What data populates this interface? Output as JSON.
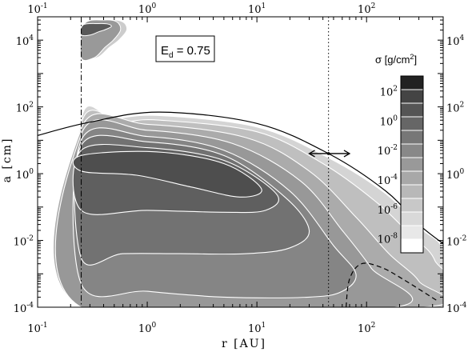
{
  "chart_data": {
    "type": "heatmap",
    "xlabel": "r [AU]",
    "ylabel": "a [cm]",
    "x_scale": "log",
    "y_scale": "log",
    "xlim": [
      0.1,
      500
    ],
    "ylim": [
      0.0001,
      50000
    ],
    "x_ticks": [
      {
        "value": 0.1,
        "label": "10",
        "exp": "-1"
      },
      {
        "value": 1,
        "label": "10",
        "exp": "0"
      },
      {
        "value": 10,
        "label": "10",
        "exp": "1"
      },
      {
        "value": 100,
        "label": "10",
        "exp": "2"
      }
    ],
    "y_ticks": [
      {
        "value": 0.0001,
        "label": "10",
        "exp": "-4"
      },
      {
        "value": 0.01,
        "label": "10",
        "exp": "-2"
      },
      {
        "value": 1,
        "label": "10",
        "exp": "0"
      },
      {
        "value": 100,
        "label": "10",
        "exp": "2"
      },
      {
        "value": 10000,
        "label": "10",
        "exp": "4"
      }
    ],
    "annotation": {
      "main": "E",
      "sub": "d",
      "rest": " = 0.75"
    },
    "colorbar": {
      "title": "σ [g/cm",
      "title_sup": "2",
      "title_end": "]",
      "levels": [
        "1e-9",
        "1e-8",
        "1e-7",
        "1e-6",
        "1e-5",
        "1e-4",
        "1e-3",
        "1e-2",
        "1e-1",
        "1e0",
        "1e1",
        "1e2"
      ],
      "colors": [
        "#ffffff",
        "#e8e8e8",
        "#d9d9d9",
        "#c8c8c8",
        "#b8b8b8",
        "#a8a8a8",
        "#999999",
        "#888888",
        "#777777",
        "#666666",
        "#555555",
        "#444444",
        "#222222"
      ],
      "ticks": [
        {
          "value": 2,
          "label": "10",
          "exp": "2"
        },
        {
          "value": 0,
          "label": "10",
          "exp": "0"
        },
        {
          "value": -2,
          "label": "10",
          "exp": "-2"
        },
        {
          "value": -4,
          "label": "10",
          "exp": "-4"
        },
        {
          "value": -6,
          "label": "10",
          "exp": "-6"
        },
        {
          "value": -8,
          "label": "10",
          "exp": "-8"
        }
      ]
    },
    "lines": {
      "inner_boundary_r": 0.25,
      "vertical_dotted_r": 45,
      "solid_curve": [
        [
          0.1,
          14
        ],
        [
          0.3,
          35
        ],
        [
          1.3,
          70
        ],
        [
          10,
          32
        ],
        [
          45,
          4
        ],
        [
          150,
          0.3
        ],
        [
          300,
          0.03
        ],
        [
          500,
          0.008
        ]
      ],
      "dashed_curve": [
        [
          65,
          0.0001
        ],
        [
          70,
          0.0007
        ],
        [
          90,
          0.002
        ],
        [
          140,
          0.0015
        ],
        [
          230,
          0.0006
        ],
        [
          450,
          0.00015
        ]
      ],
      "arrow": {
        "r_from": 30,
        "r_to": 70,
        "a": 4
      }
    },
    "contour_bands": [
      {
        "level": "1e-6",
        "color": "#d4d4d4",
        "points": [
          [
            0.25,
            0.0001
          ],
          [
            0.25,
            40
          ],
          [
            0.5,
            45
          ],
          [
            1.3,
            55
          ],
          [
            10,
            25
          ],
          [
            45,
            3
          ],
          [
            150,
            0.25
          ],
          [
            300,
            0.025
          ],
          [
            500,
            0.005
          ],
          [
            500,
            0.0001
          ]
        ]
      },
      {
        "level": "1e-5",
        "color": "#bfbfbf",
        "points": [
          [
            0.25,
            0.0001
          ],
          [
            0.25,
            30
          ],
          [
            0.6,
            35
          ],
          [
            1.3,
            40
          ],
          [
            10,
            18
          ],
          [
            40,
            2
          ],
          [
            120,
            0.15
          ],
          [
            250,
            0.015
          ],
          [
            420,
            0.0025
          ],
          [
            470,
            0.0001
          ]
        ]
      },
      {
        "level": "1e-4",
        "color": "#ababab",
        "points": [
          [
            0.25,
            0.0001
          ],
          [
            0.25,
            22
          ],
          [
            1,
            30
          ],
          [
            8,
            12
          ],
          [
            30,
            1.2
          ],
          [
            80,
            0.05
          ],
          [
            160,
            0.004
          ],
          [
            300,
            0.0006
          ],
          [
            330,
            0.0001
          ]
        ]
      },
      {
        "level": "1e-3",
        "color": "#989898",
        "points": [
          [
            0.25,
            0.0001
          ],
          [
            0.25,
            15
          ],
          [
            1,
            20
          ],
          [
            6,
            8
          ],
          [
            25,
            0.6
          ],
          [
            60,
            0.02
          ],
          [
            110,
            0.0015
          ],
          [
            180,
            0.0001
          ]
        ]
      },
      {
        "level": "1e-2",
        "color": "#858585",
        "points": [
          [
            0.25,
            0.0005
          ],
          [
            0.25,
            10
          ],
          [
            1,
            13
          ],
          [
            5,
            5
          ],
          [
            20,
            0.3
          ],
          [
            50,
            0.007
          ],
          [
            80,
            0.001
          ],
          [
            60,
            0.0003
          ],
          [
            30,
            0.0002
          ],
          [
            5,
            0.0002
          ],
          [
            1,
            0.0003
          ]
        ]
      },
      {
        "level": "1e-1",
        "color": "#727272",
        "points": [
          [
            0.25,
            0.003
          ],
          [
            0.25,
            7
          ],
          [
            1,
            9
          ],
          [
            5,
            3.5
          ],
          [
            18,
            0.2
          ],
          [
            30,
            0.02
          ],
          [
            20,
            0.006
          ],
          [
            8,
            0.004
          ],
          [
            2,
            0.004
          ],
          [
            0.6,
            0.004
          ]
        ]
      },
      {
        "level": "1e0",
        "color": "#5f5f5f",
        "points": [
          [
            0.25,
            0.08
          ],
          [
            0.25,
            5
          ],
          [
            1,
            6
          ],
          [
            5,
            2.5
          ],
          [
            15,
            0.25
          ],
          [
            12,
            0.08
          ],
          [
            5,
            0.07
          ],
          [
            1,
            0.08
          ]
        ]
      },
      {
        "level": "1e1",
        "color": "#4e4e4e",
        "points": [
          [
            0.25,
            1.2
          ],
          [
            0.25,
            3.5
          ],
          [
            1.2,
            4.5
          ],
          [
            5,
            2
          ],
          [
            11,
            0.35
          ],
          [
            7,
            0.2
          ],
          [
            2.5,
            0.4
          ],
          [
            0.8,
            0.9
          ]
        ]
      }
    ],
    "top_blob": {
      "color": "#5a5a5a",
      "points": [
        [
          0.25,
          3000
        ],
        [
          0.27,
          30000
        ],
        [
          0.45,
          40000
        ],
        [
          0.6,
          35000
        ],
        [
          0.65,
          20000
        ],
        [
          0.55,
          10000
        ],
        [
          0.45,
          6000
        ],
        [
          0.35,
          3000
        ]
      ]
    },
    "bottom_left_blob": {
      "color": "#cfcfcf",
      "points": [
        [
          0.25,
          0.0001
        ],
        [
          0.25,
          0.0007
        ],
        [
          0.6,
          0.0006
        ],
        [
          1.2,
          0.0003
        ],
        [
          1.5,
          0.0001
        ]
      ]
    }
  }
}
